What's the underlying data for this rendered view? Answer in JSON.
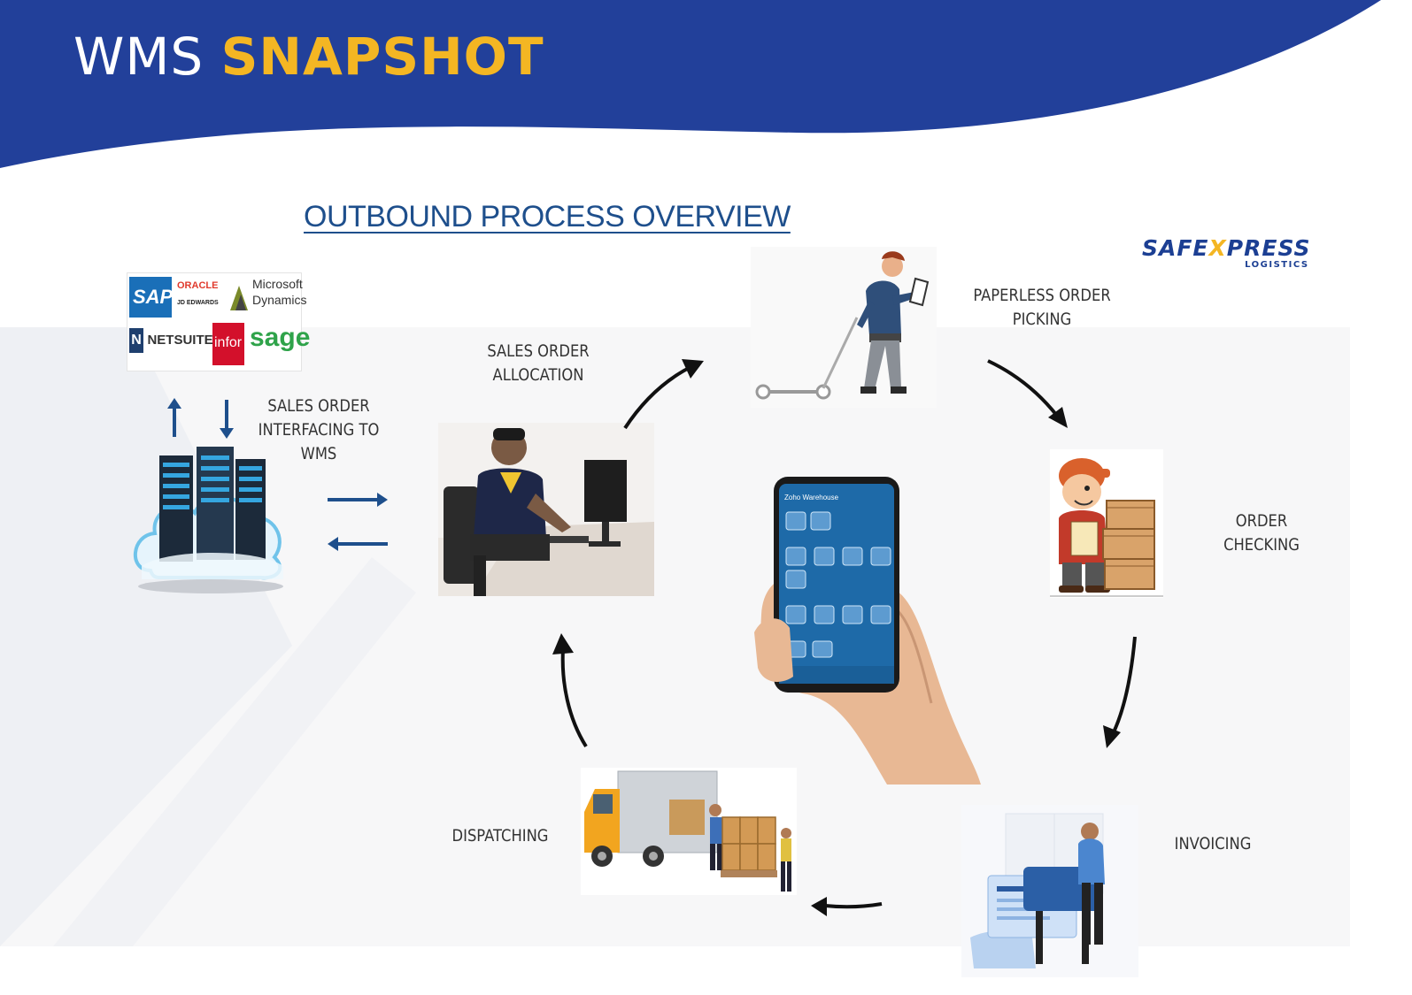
{
  "header": {
    "title_part1": "WMS",
    "title_part2": "SNAPSHOT",
    "band_color": "#22409a",
    "accent_color": "#f4b623"
  },
  "diagram": {
    "title": "OUTBOUND PROCESS OVERVIEW",
    "brand": {
      "name_part1": "SAFE",
      "name_x": "X",
      "name_part2": "PRESS",
      "tagline": "LOGISTICS"
    },
    "erp_logos": [
      "SAP",
      "ORACLE",
      "JD EDWARDS",
      "Microsoft",
      "Dynamics",
      "NETSUITE",
      "infor",
      "sage"
    ],
    "steps": [
      {
        "id": "interfacing",
        "line1": "SALES ORDER",
        "line2": "INTERFACING TO",
        "line3": "WMS"
      },
      {
        "id": "allocation",
        "line1": "SALES ORDER",
        "line2": "ALLOCATION"
      },
      {
        "id": "picking",
        "line1": "PAPERLESS ORDER",
        "line2": "PICKING"
      },
      {
        "id": "checking",
        "line1": "ORDER",
        "line2": "CHECKING"
      },
      {
        "id": "invoicing",
        "line1": "INVOICING"
      },
      {
        "id": "dispatching",
        "line1": "DISPATCHING"
      }
    ],
    "phone_screen_title": "Zoho Warehouse"
  }
}
